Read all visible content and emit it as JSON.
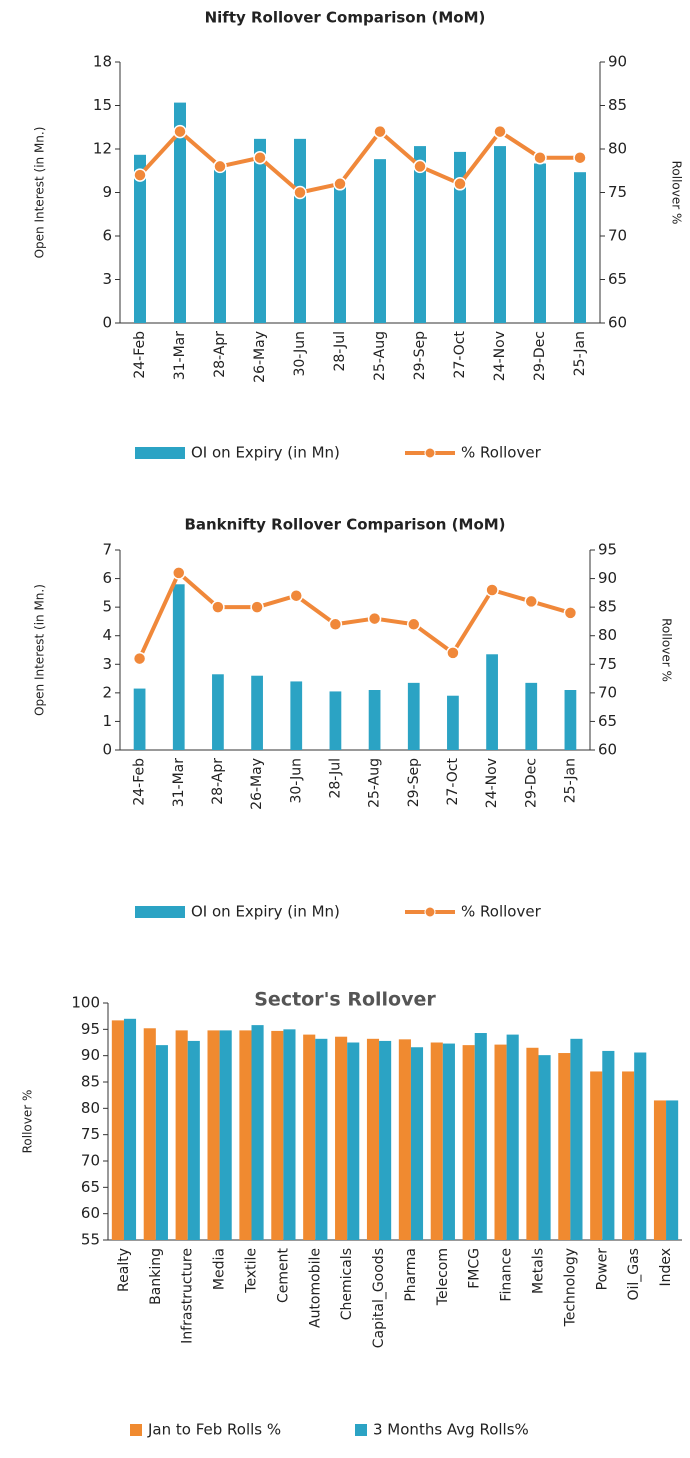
{
  "chart_data": [
    {
      "type": "combo",
      "title": "Nifty Rollover Comparison (MoM)",
      "categories": [
        "24-Feb",
        "31-Mar",
        "28-Apr",
        "26-May",
        "30-Jun",
        "28-Jul",
        "25-Aug",
        "29-Sep",
        "27-Oct",
        "24-Nov",
        "29-Dec",
        "25-Jan"
      ],
      "ylabel": "Open Interest (in Mn.)",
      "y2label": "Rollover %",
      "ylim": [
        0,
        18
      ],
      "yticks": [
        0,
        3,
        6,
        9,
        12,
        15,
        18
      ],
      "y2lim": [
        60,
        90
      ],
      "y2ticks": [
        60,
        65,
        70,
        75,
        80,
        85,
        90
      ],
      "series": [
        {
          "name": "OI on Expiry (in Mn)",
          "type": "bar",
          "color": "#2ba3c4",
          "values": [
            11.6,
            15.2,
            10.7,
            12.7,
            12.7,
            9.6,
            11.3,
            12.2,
            11.8,
            12.2,
            11.0,
            10.4
          ]
        },
        {
          "name": "% Rollover",
          "type": "line",
          "axis": "y2",
          "color": "#f0883a",
          "values": [
            77,
            82,
            78,
            79,
            75,
            76,
            82,
            78,
            76,
            82,
            79,
            79
          ]
        }
      ]
    },
    {
      "type": "combo",
      "title": "Banknifty Rollover Comparison (MoM)",
      "categories": [
        "24-Feb",
        "31-Mar",
        "28-Apr",
        "26-May",
        "30-Jun",
        "28-Jul",
        "25-Aug",
        "29-Sep",
        "27-Oct",
        "24-Nov",
        "29-Dec",
        "25-Jan"
      ],
      "ylabel": "Open Interest (in Mn.)",
      "y2label": "Rollover %",
      "ylim": [
        0,
        7
      ],
      "yticks": [
        0,
        1,
        2,
        3,
        4,
        5,
        6,
        7
      ],
      "y2lim": [
        60,
        95
      ],
      "y2ticks": [
        60,
        65,
        70,
        75,
        80,
        85,
        90,
        95
      ],
      "series": [
        {
          "name": "OI on Expiry (in Mn)",
          "type": "bar",
          "color": "#2ba3c4",
          "values": [
            2.15,
            5.8,
            2.65,
            2.6,
            2.4,
            2.05,
            2.1,
            2.35,
            1.9,
            3.35,
            2.35,
            2.1
          ]
        },
        {
          "name": "% Rollover",
          "type": "line",
          "axis": "y2",
          "color": "#f0883a",
          "values": [
            76,
            91,
            85,
            85,
            87,
            82,
            83,
            82,
            77,
            88,
            86,
            84
          ]
        }
      ]
    },
    {
      "type": "bar",
      "title": "Sector's Rollover",
      "categories": [
        "Realty",
        "Banking",
        "Infrastructure",
        "Media",
        "Textile",
        "Cement",
        "Automobile",
        "Chemicals",
        "Capital_Goods",
        "Pharma",
        "Telecom",
        "FMCG",
        "Finance",
        "Metals",
        "Technology",
        "Power",
        "Oil_Gas",
        "Index"
      ],
      "ylabel": "Rollover %",
      "ylim": [
        55,
        100
      ],
      "yticks": [
        55,
        60,
        65,
        70,
        75,
        80,
        85,
        90,
        95,
        100
      ],
      "series": [
        {
          "name": "Jan to Feb Rolls %",
          "type": "bar",
          "color": "#f08a30",
          "values": [
            96.7,
            95.2,
            94.8,
            94.8,
            94.8,
            94.7,
            94.0,
            93.6,
            93.2,
            93.1,
            92.5,
            92.0,
            92.1,
            91.5,
            90.5,
            87.0,
            87.0,
            81.5
          ]
        },
        {
          "name": "3 Months Avg Rolls%",
          "type": "bar",
          "color": "#2ba3c4",
          "values": [
            97.0,
            92.0,
            92.8,
            94.8,
            95.8,
            95.0,
            93.2,
            92.5,
            92.8,
            91.6,
            92.3,
            94.3,
            94.0,
            90.1,
            93.2,
            90.9,
            90.6,
            81.5
          ]
        }
      ]
    }
  ]
}
